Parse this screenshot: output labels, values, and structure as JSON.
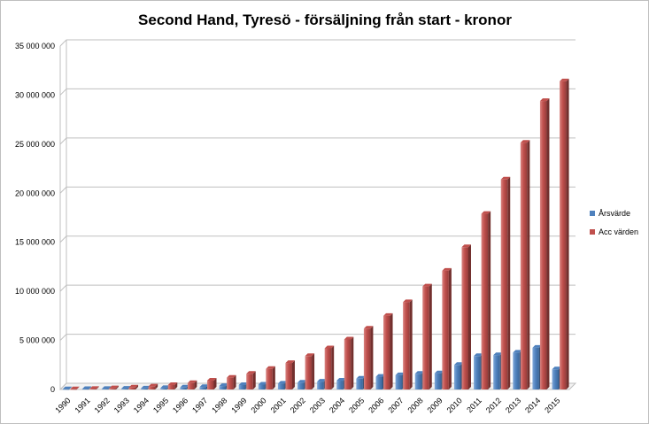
{
  "chart_data": {
    "type": "bar",
    "title": "Second Hand, Tyresö - försäljning från start - kronor",
    "xlabel": "",
    "ylabel": "",
    "categories": [
      "1990",
      "1991",
      "1992",
      "1993",
      "1994",
      "1995",
      "1996",
      "1997",
      "1998",
      "1999",
      "2000",
      "2001",
      "2002",
      "2003",
      "2004",
      "2005",
      "2006",
      "2007",
      "2008",
      "2009",
      "2010",
      "2011",
      "2012",
      "2013",
      "2014",
      "2015"
    ],
    "series": [
      {
        "name": "Årsvärde",
        "color": "#4F81BD",
        "values": [
          20000,
          40000,
          60000,
          80000,
          100000,
          150000,
          200000,
          250000,
          350000,
          450000,
          500000,
          600000,
          700000,
          800000,
          900000,
          1100000,
          1300000,
          1450000,
          1600000,
          1650000,
          2500000,
          3400000,
          3500000,
          3750000,
          4250000,
          2050000
        ]
      },
      {
        "name": "Acc värden",
        "color": "#C0504D",
        "values": [
          20000,
          60000,
          120000,
          200000,
          300000,
          450000,
          650000,
          900000,
          1200000,
          1600000,
          2100000,
          2700000,
          3400000,
          4200000,
          5100000,
          6200000,
          7500000,
          8900000,
          10500000,
          12100000,
          14500000,
          17900000,
          21400000,
          25150000,
          29400000,
          31400000
        ]
      }
    ],
    "yticks": [
      "0",
      "5 000 000",
      "10 000 000",
      "15 000 000",
      "20 000 000",
      "25 000 000",
      "30 000 000",
      "35 000 000"
    ],
    "ylim": [
      0,
      35000000
    ],
    "grid": true,
    "legend_position": "right"
  }
}
